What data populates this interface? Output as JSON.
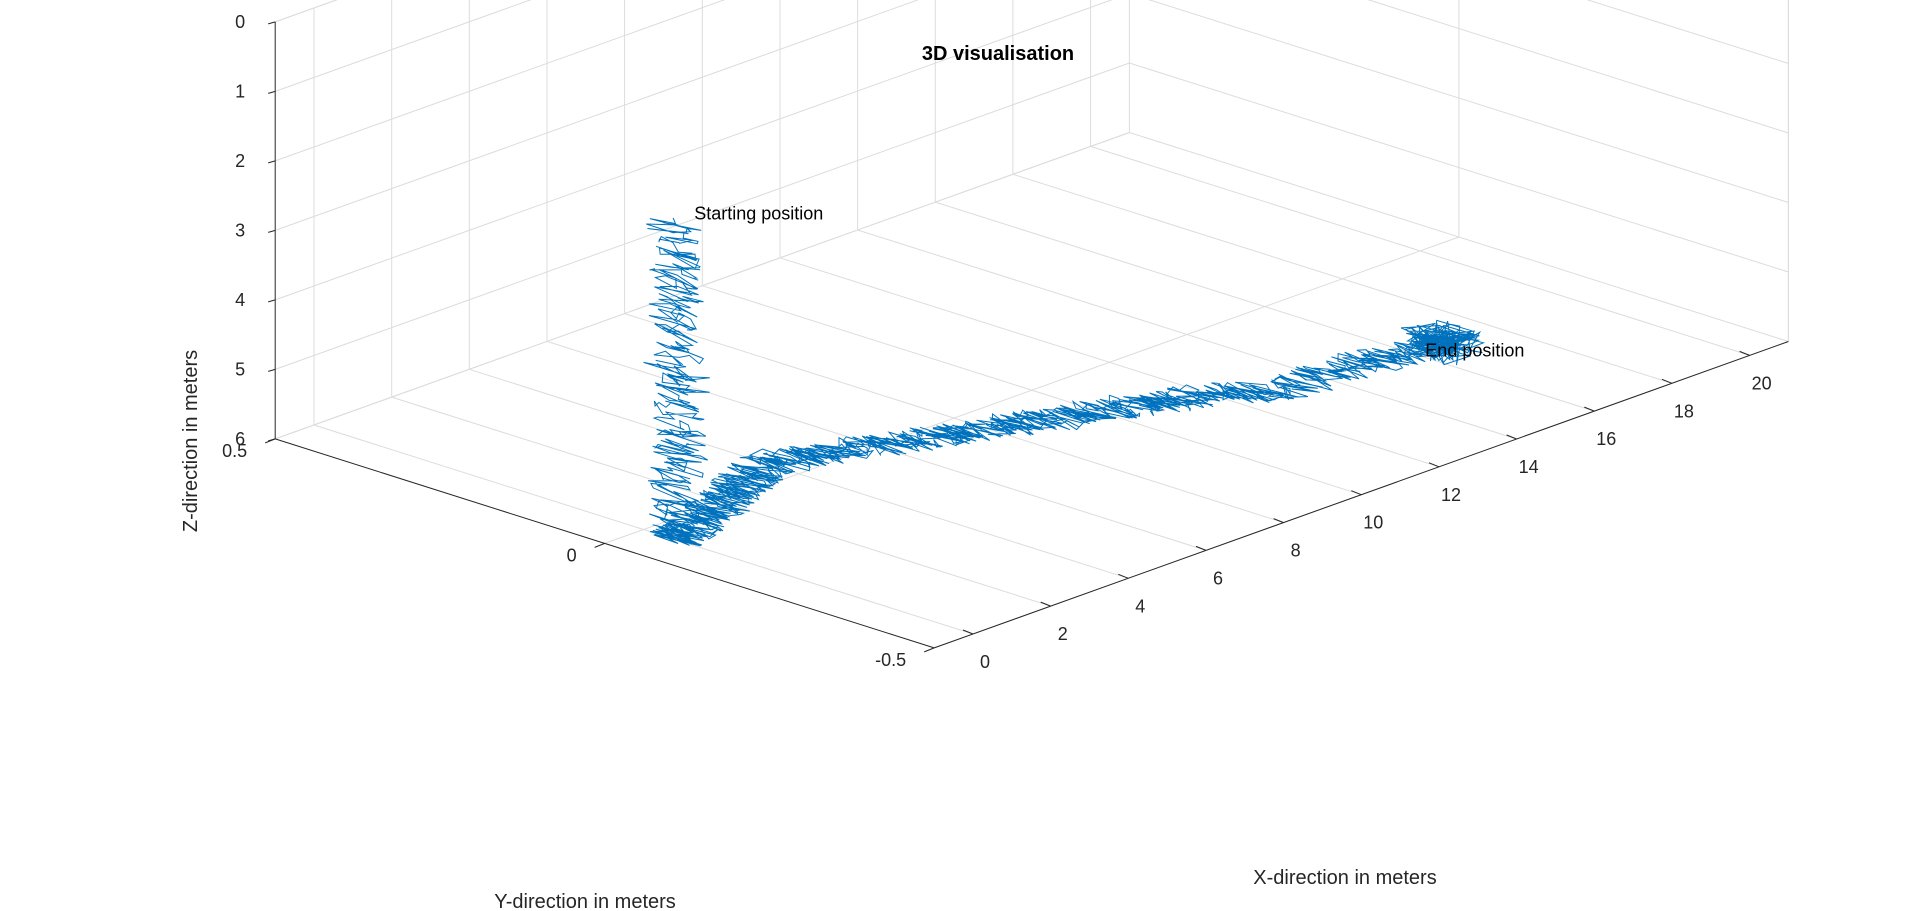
{
  "chart_data": {
    "type": "line3d",
    "title": "3D visualisation",
    "xlabel": "X-direction in meters",
    "ylabel": "Y-direction in meters",
    "zlabel": "Z-direction in meters",
    "xlim": [
      -1,
      21
    ],
    "ylim": [
      -0.5,
      0.5
    ],
    "zlim": [
      0,
      6
    ],
    "z_direction": "reversed",
    "grid": true,
    "x_ticks": [
      0,
      2,
      4,
      6,
      8,
      10,
      12,
      14,
      16,
      18,
      20
    ],
    "y_ticks": [
      -0.5,
      0,
      0.5
    ],
    "z_ticks": [
      0,
      1,
      2,
      3,
      4,
      5,
      6
    ],
    "x_tick_labels": [
      "0",
      "2",
      "4",
      "6",
      "8",
      "10",
      "12",
      "14",
      "16",
      "18",
      "20"
    ],
    "y_tick_labels": [
      "-0.5",
      "0",
      "0.5"
    ],
    "z_tick_labels": [
      "0",
      "1",
      "2",
      "3",
      "4",
      "5",
      "6"
    ],
    "series_color": "#0072BD",
    "path_outline": [
      {
        "x": 0,
        "y": -0.05,
        "z": 1.4
      },
      {
        "x": 0,
        "y": -0.05,
        "z": 6.0
      },
      {
        "x": 2,
        "y": 0.0,
        "z": 6.0
      },
      {
        "x": 4,
        "y": 0.05,
        "z": 6.0
      },
      {
        "x": 6,
        "y": 0.0,
        "z": 6.0
      },
      {
        "x": 8,
        "y": -0.05,
        "z": 6.0
      },
      {
        "x": 10,
        "y": -0.1,
        "z": 6.0
      },
      {
        "x": 12,
        "y": -0.15,
        "z": 6.0
      },
      {
        "x": 13,
        "y": -0.2,
        "z": 6.0
      },
      {
        "x": 14,
        "y": -0.25,
        "z": 5.7
      },
      {
        "x": 15.5,
        "y": -0.3,
        "z": 5.5
      }
    ],
    "noise_amplitude_m": 0.1,
    "annotations": [
      {
        "text": "Starting position",
        "x": 0.2,
        "y": -0.05,
        "z": 1.4
      },
      {
        "text": "End position",
        "x": 15.3,
        "y": -0.3,
        "z": 5.5
      }
    ]
  }
}
